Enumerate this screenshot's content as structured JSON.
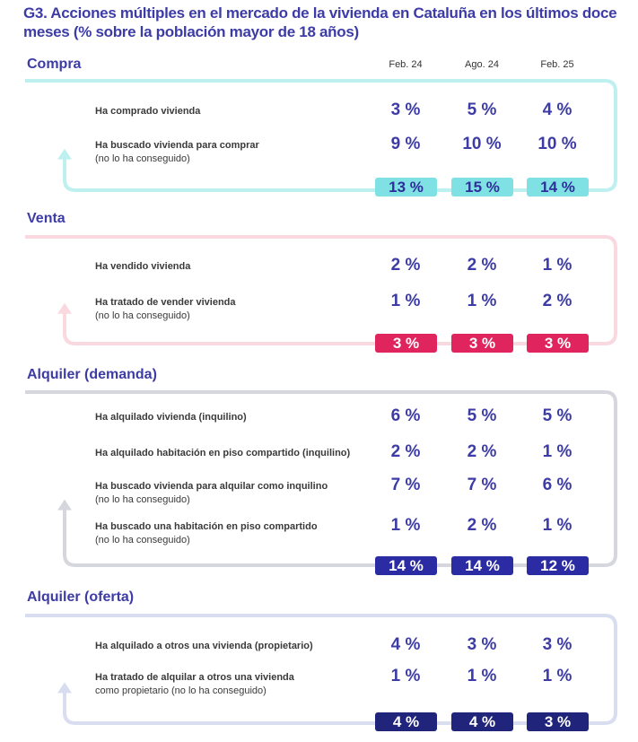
{
  "title": "G3. Acciones múltiples en el mercado de la vivienda en Cataluña en los últimos doce meses (% sobre la población mayor de 18 años)",
  "chart_data": {
    "type": "table",
    "columns": [
      "Feb. 24",
      "Ago. 24",
      "Feb. 25"
    ],
    "sections": [
      {
        "title": "Compra",
        "loop_color": "#bff0f0",
        "badge_bg": "#7fe1e4",
        "badge_fg": "#2f2f9a",
        "rows": [
          {
            "label": "Ha comprado vivienda",
            "sub": "",
            "values": [
              "3 %",
              "5 %",
              "4 %"
            ]
          },
          {
            "label": "Ha buscado vivienda para comprar",
            "sub": "(no lo ha conseguido)",
            "values": [
              "9 %",
              "10 %",
              "10 %"
            ]
          }
        ],
        "totals": [
          "13 %",
          "15 %",
          "14 %"
        ]
      },
      {
        "title": "Venta",
        "loop_color": "#fad8e0",
        "badge_bg": "#e0245e",
        "badge_fg": "#ffffff",
        "rows": [
          {
            "label": "Ha vendido vivienda",
            "sub": "",
            "values": [
              "2 %",
              "2 %",
              "1 %"
            ]
          },
          {
            "label": "Ha tratado de vender vivienda",
            "sub": "(no lo ha conseguido)",
            "values": [
              "1 %",
              "1 %",
              "2 %"
            ]
          }
        ],
        "totals": [
          "3 %",
          "3 %",
          "3 %"
        ]
      },
      {
        "title": "Alquiler (demanda)",
        "loop_color": "#d6d6de",
        "badge_bg": "#2b2ba3",
        "badge_fg": "#ffffff",
        "rows": [
          {
            "label": "Ha alquilado vivienda (inquilino)",
            "sub": "",
            "values": [
              "6 %",
              "5 %",
              "5 %"
            ]
          },
          {
            "label": "Ha alquilado habitación en piso compartido (inquilino)",
            "sub": "",
            "values": [
              "2 %",
              "2 %",
              "1 %"
            ]
          },
          {
            "label": "Ha buscado vivienda para alquilar como inquilino",
            "sub": "(no lo ha conseguido)",
            "values": [
              "7 %",
              "7 %",
              "6 %"
            ]
          },
          {
            "label": "Ha buscado una habitación en piso compartido",
            "sub": "(no lo ha conseguido)",
            "values": [
              "1 %",
              "2 %",
              "1 %"
            ]
          }
        ],
        "totals": [
          "14 %",
          "14 %",
          "12 %"
        ]
      },
      {
        "title": "Alquiler (oferta)",
        "loop_color": "#d9ddf0",
        "badge_bg": "#20247a",
        "badge_fg": "#ffffff",
        "rows": [
          {
            "label": "Ha alquilado a otros una vivienda (propietario)",
            "sub": "",
            "values": [
              "4 %",
              "3 %",
              "3 %"
            ]
          },
          {
            "label": "Ha tratado de alquilar a otros una vivienda",
            "sub": "como propietario (no lo ha conseguido)",
            "values": [
              "1 %",
              "1 %",
              "1 %"
            ]
          }
        ],
        "totals": [
          "4 %",
          "4 %",
          "3 %"
        ]
      }
    ]
  }
}
